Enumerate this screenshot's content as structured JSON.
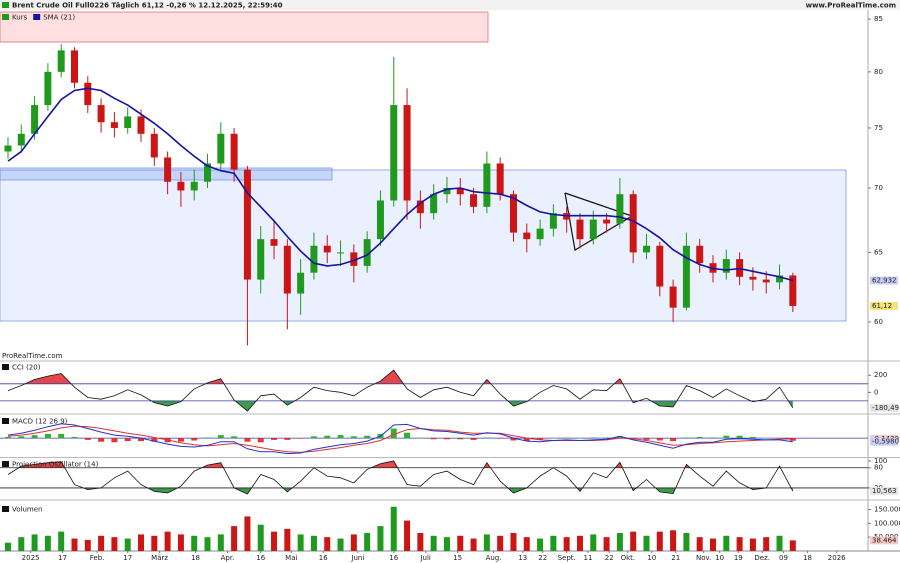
{
  "header": {
    "title": "Brent Crude Oil Full0226 Täglich 61,12 -0,26 % 12.12.2025, 22:59:40",
    "site": "www.ProRealTime.com",
    "footer": "ProRealTime.com"
  },
  "chart_data": [
    {
      "type": "candlestick",
      "name": "Kurs",
      "log": true,
      "up_color": "#1f9a1f",
      "down_color": "#cc1515",
      "open": [
        73,
        73.5,
        74.5,
        77,
        80,
        82,
        79,
        77,
        75.5,
        75,
        76,
        74.5,
        72.5,
        70.5,
        69.8,
        70.5,
        72,
        74.5,
        71.5,
        63,
        66,
        65.5,
        62,
        63.5,
        65.5,
        65,
        65,
        64,
        66,
        69,
        77,
        69,
        68,
        69.5,
        70,
        69.5,
        68.5,
        72,
        69.5,
        66.5,
        66,
        66.8,
        68,
        67.5,
        66,
        67.5,
        67.2,
        69.5,
        65,
        65.5,
        62.5,
        61,
        65.5,
        64.2,
        63.5,
        64.5,
        63.2,
        63,
        62.8,
        63.3
      ],
      "high": [
        74.2,
        75.3,
        77.8,
        80.8,
        82.6,
        82.3,
        79.6,
        77.6,
        76.4,
        76.8,
        76.6,
        75,
        73,
        71.3,
        71.5,
        72.8,
        75.5,
        75,
        71.8,
        67,
        67.5,
        66,
        64.5,
        66.5,
        66.3,
        65.9,
        65.6,
        66.6,
        69.8,
        81.4,
        78.5,
        69.8,
        70.3,
        70.9,
        70.8,
        70,
        73,
        72.5,
        69.8,
        67.2,
        67.5,
        68.7,
        68.5,
        68,
        68.2,
        68,
        70.8,
        69.8,
        66.4,
        65.8,
        63,
        66.5,
        66,
        64.8,
        65.2,
        65,
        63.9,
        63.6,
        64.1,
        63.5
      ],
      "low": [
        72.4,
        72.9,
        74,
        76.5,
        79.5,
        78.5,
        76.3,
        74.6,
        74.2,
        74.5,
        73.8,
        71.8,
        69.5,
        68.5,
        69,
        70,
        71.5,
        70.5,
        58.4,
        62,
        64.5,
        59.5,
        60.5,
        63,
        64.2,
        64,
        62.8,
        63.5,
        65.5,
        68.5,
        67.5,
        66.8,
        67.5,
        68.8,
        68.6,
        68,
        68,
        69,
        65.8,
        65,
        65.5,
        66.2,
        66.5,
        65.3,
        65.6,
        66.5,
        66.8,
        64.2,
        64.5,
        61.8,
        60,
        60.8,
        63.5,
        62.8,
        63,
        62.6,
        62.2,
        62,
        62.3,
        60.7
      ],
      "close": [
        73.5,
        74.5,
        77,
        80,
        82,
        79,
        77,
        75.5,
        75,
        76,
        74.5,
        72.5,
        70.5,
        69.8,
        70.5,
        72,
        74.5,
        71.5,
        63,
        66,
        65.5,
        62,
        63.5,
        65.5,
        65,
        65,
        64,
        66,
        69,
        77,
        69,
        68,
        69.5,
        70,
        69.5,
        68.5,
        72,
        69.5,
        66.5,
        66,
        66.8,
        68,
        67.5,
        66,
        67.5,
        67.2,
        69.5,
        65,
        65.5,
        62.5,
        61,
        65.5,
        64.2,
        63.5,
        64.5,
        63.2,
        63,
        62.8,
        63.3,
        61.12
      ],
      "series": [
        {
          "name": "SMA (21)",
          "color": "#1414a0",
          "values": [
            72.2,
            73,
            74.5,
            76,
            77.5,
            78.3,
            78.5,
            78.3,
            77.6,
            77,
            76.2,
            75.4,
            74.5,
            73.5,
            72.6,
            71.8,
            71.4,
            71.2,
            69.6,
            68.5,
            67.4,
            66.2,
            65.1,
            64.2,
            64,
            64.1,
            64.4,
            64.8,
            65.7,
            66.8,
            67.9,
            68.8,
            69.5,
            69.9,
            70,
            69.7,
            69.6,
            69.5,
            69.2,
            68.6,
            68.1,
            67.9,
            67.8,
            67.8,
            67.8,
            67.8,
            67.7,
            67.4,
            66.8,
            66.1,
            65.2,
            64.6,
            64.1,
            63.8,
            63.7,
            63.8,
            63.6,
            63.4,
            63.2,
            62.932
          ]
        }
      ],
      "ylim": [
        58.1,
        85.7
      ],
      "yticks": [
        85,
        80,
        75,
        70,
        65,
        60
      ],
      "tags": [
        {
          "value": 62.932,
          "label": "62,932",
          "color": "#c8cdf5"
        },
        {
          "value": 61.12,
          "label": "61,12",
          "color": "#f5e27a"
        }
      ],
      "xlim": [
        -0.6,
        63.9
      ],
      "xticks": [
        {
          "value": 1.7,
          "label": "2025"
        },
        {
          "value": 4.1,
          "label": "17"
        },
        {
          "value": 6.7,
          "label": "Feb."
        },
        {
          "value": 9.0,
          "label": "17"
        },
        {
          "value": 11.4,
          "label": "März"
        },
        {
          "value": 14.1,
          "label": "18"
        },
        {
          "value": 16.5,
          "label": "Apr."
        },
        {
          "value": 19.0,
          "label": "16"
        },
        {
          "value": 21.3,
          "label": "Mai"
        },
        {
          "value": 23.7,
          "label": "16"
        },
        {
          "value": 26.3,
          "label": "Juni"
        },
        {
          "value": 29.0,
          "label": "16"
        },
        {
          "value": 31.4,
          "label": "Juli"
        },
        {
          "value": 33.8,
          "label": "15"
        },
        {
          "value": 36.5,
          "label": "Aug."
        },
        {
          "value": 38.7,
          "label": "13"
        },
        {
          "value": 40.2,
          "label": "22"
        },
        {
          "value": 42.0,
          "label": "Sept."
        },
        {
          "value": 43.6,
          "label": "11"
        },
        {
          "value": 45.2,
          "label": "22"
        },
        {
          "value": 46.6,
          "label": "Okt."
        },
        {
          "value": 48.4,
          "label": "10"
        },
        {
          "value": 50.2,
          "label": "21"
        },
        {
          "value": 52.3,
          "label": "Nov."
        },
        {
          "value": 53.5,
          "label": "10"
        },
        {
          "value": 54.9,
          "label": "19"
        },
        {
          "value": 56.7,
          "label": "Dez."
        },
        {
          "value": 58.3,
          "label": "09"
        },
        {
          "value": 60.1,
          "label": "18"
        },
        {
          "value": 62.3,
          "label": "2026"
        }
      ]
    },
    {
      "type": "line",
      "name": "CCI (20)",
      "color": "#111111",
      "values": [
        20,
        80,
        150,
        190,
        220,
        60,
        -60,
        -80,
        -40,
        30,
        -30,
        -120,
        -160,
        -110,
        40,
        110,
        160,
        -90,
        -220,
        -40,
        -20,
        -150,
        -60,
        60,
        20,
        0,
        -40,
        60,
        130,
        260,
        40,
        -60,
        30,
        60,
        0,
        -40,
        150,
        -20,
        -160,
        -110,
        0,
        80,
        40,
        -80,
        30,
        20,
        160,
        -120,
        -70,
        -160,
        -170,
        80,
        20,
        -60,
        40,
        -40,
        -110,
        -80,
        60,
        -180.49
      ],
      "ylim": [
        -230,
        355
      ],
      "yticks": [
        200,
        0
      ],
      "levels": [
        100,
        -100
      ],
      "level_color": "#3a3aa8",
      "fill_above": "#e02828",
      "fill_below": "#1c8a2a",
      "tags": [
        {
          "value": -180.49,
          "label": "-180,49",
          "color": "#e4e4e4"
        }
      ]
    },
    {
      "type": "macd",
      "name": "MACD (12 26 9)",
      "macd": [
        0.5,
        0.8,
        1.3,
        1.9,
        2.4,
        2.2,
        1.6,
        1.0,
        0.5,
        0.3,
        0.0,
        -0.5,
        -1.0,
        -1.4,
        -1.5,
        -1.2,
        -0.6,
        -0.6,
        -1.8,
        -2.3,
        -2.3,
        -2.6,
        -2.5,
        -1.9,
        -1.5,
        -1.1,
        -0.9,
        -0.5,
        0.3,
        2.2,
        2.3,
        1.6,
        1.2,
        1.1,
        0.8,
        0.5,
        0.9,
        0.7,
        0.0,
        -0.5,
        -0.6,
        -0.4,
        -0.3,
        -0.4,
        -0.3,
        -0.2,
        0.3,
        -0.3,
        -0.7,
        -1.2,
        -1.7,
        -1.0,
        -0.7,
        -0.7,
        -0.2,
        -0.1,
        -0.2,
        -0.3,
        -0.3,
        -0.598
      ],
      "signal": [
        0.3,
        0.5,
        0.8,
        1.2,
        1.7,
        2.0,
        1.9,
        1.6,
        1.2,
        0.8,
        0.5,
        0.1,
        -0.3,
        -0.8,
        -1.1,
        -1.3,
        -1.1,
        -0.9,
        -1.2,
        -1.6,
        -2.0,
        -2.3,
        -2.4,
        -2.2,
        -1.9,
        -1.6,
        -1.2,
        -0.9,
        -0.4,
        0.6,
        1.4,
        1.6,
        1.4,
        1.3,
        1.0,
        0.8,
        0.8,
        0.8,
        0.4,
        0.0,
        -0.3,
        -0.4,
        -0.4,
        -0.4,
        -0.4,
        -0.3,
        0.0,
        -0.1,
        -0.4,
        -0.8,
        -1.2,
        -1.1,
        -0.9,
        -0.8,
        -0.6,
        -0.5,
        -0.4,
        -0.3,
        -0.2,
        -0.143
      ],
      "histogram": [
        0.2,
        0.3,
        0.5,
        0.7,
        0.7,
        0.2,
        -0.3,
        -0.6,
        -0.7,
        -0.5,
        -0.5,
        -0.6,
        -0.7,
        -0.6,
        -0.4,
        0.1,
        0.5,
        0.3,
        -0.6,
        -0.7,
        -0.3,
        -0.3,
        -0.1,
        0.3,
        0.4,
        0.5,
        0.3,
        0.4,
        0.7,
        1.6,
        0.9,
        0.0,
        -0.2,
        -0.2,
        -0.2,
        -0.3,
        0.1,
        -0.1,
        -0.4,
        -0.5,
        -0.3,
        0.0,
        0.1,
        0.0,
        0.1,
        0.1,
        0.3,
        -0.2,
        -0.3,
        -0.4,
        -0.5,
        0.1,
        0.2,
        0.1,
        0.4,
        0.4,
        0.2,
        0.0,
        -0.1,
        -0.455
      ],
      "macd_color": "#2233cc",
      "signal_color": "#dd3333",
      "histogram_colors": [
        "#35b035",
        "#e03535"
      ],
      "ylim": [
        -3,
        3.7
      ],
      "levels": [
        0
      ],
      "level_color": "#3a3aa8",
      "tags": [
        {
          "value": -0.143,
          "label": "-0,1430",
          "color": "#f6c8c8"
        },
        {
          "value": -0.598,
          "label": "-0,5980",
          "color": "#c8cdf5"
        }
      ]
    },
    {
      "type": "line",
      "name": "Projection Oszillator (14)",
      "color": "#111111",
      "values": [
        60,
        85,
        90,
        95,
        98,
        30,
        15,
        20,
        50,
        70,
        30,
        10,
        5,
        25,
        70,
        88,
        95,
        20,
        2,
        60,
        45,
        8,
        40,
        80,
        55,
        50,
        35,
        75,
        92,
        100,
        30,
        25,
        60,
        70,
        45,
        30,
        95,
        40,
        5,
        20,
        55,
        80,
        55,
        10,
        65,
        50,
        96,
        12,
        45,
        8,
        3,
        90,
        55,
        25,
        70,
        35,
        15,
        20,
        85,
        10.563
      ],
      "ylim": [
        -10,
        106
      ],
      "yticks": [
        100,
        80,
        20
      ],
      "levels": [
        80,
        20
      ],
      "level_color": "#222222",
      "fill_above": "#e02828",
      "fill_below": "#1c8a2a",
      "tags": [
        {
          "value": 10.563,
          "label": "10,563",
          "color": "#e4e4e4"
        }
      ]
    },
    {
      "type": "volume",
      "name": "Volumen",
      "values": [
        30000,
        50000,
        60000,
        55000,
        70000,
        45000,
        40000,
        55000,
        50000,
        45000,
        60000,
        55000,
        70000,
        60000,
        55000,
        50000,
        60000,
        90000,
        125000,
        95000,
        70000,
        80000,
        60000,
        55000,
        50000,
        45000,
        60000,
        65000,
        90000,
        160000,
        110000,
        65000,
        55000,
        50000,
        55000,
        45000,
        60000,
        55000,
        65000,
        50000,
        45000,
        55000,
        50000,
        55000,
        60000,
        50000,
        65000,
        70000,
        55000,
        70000,
        75000,
        65000,
        50000,
        45000,
        55000,
        50000,
        45000,
        50000,
        55000,
        38464
      ],
      "ylim": [
        0,
        170000
      ],
      "yticks": [
        {
          "value": 150000,
          "label": "150.000"
        },
        {
          "value": 100000,
          "label": "100.000"
        },
        {
          "value": 50000,
          "label": "50.000"
        }
      ],
      "tags": [
        {
          "value": 38464,
          "label": "38.464",
          "color": "#f6c8c8"
        }
      ]
    }
  ]
}
